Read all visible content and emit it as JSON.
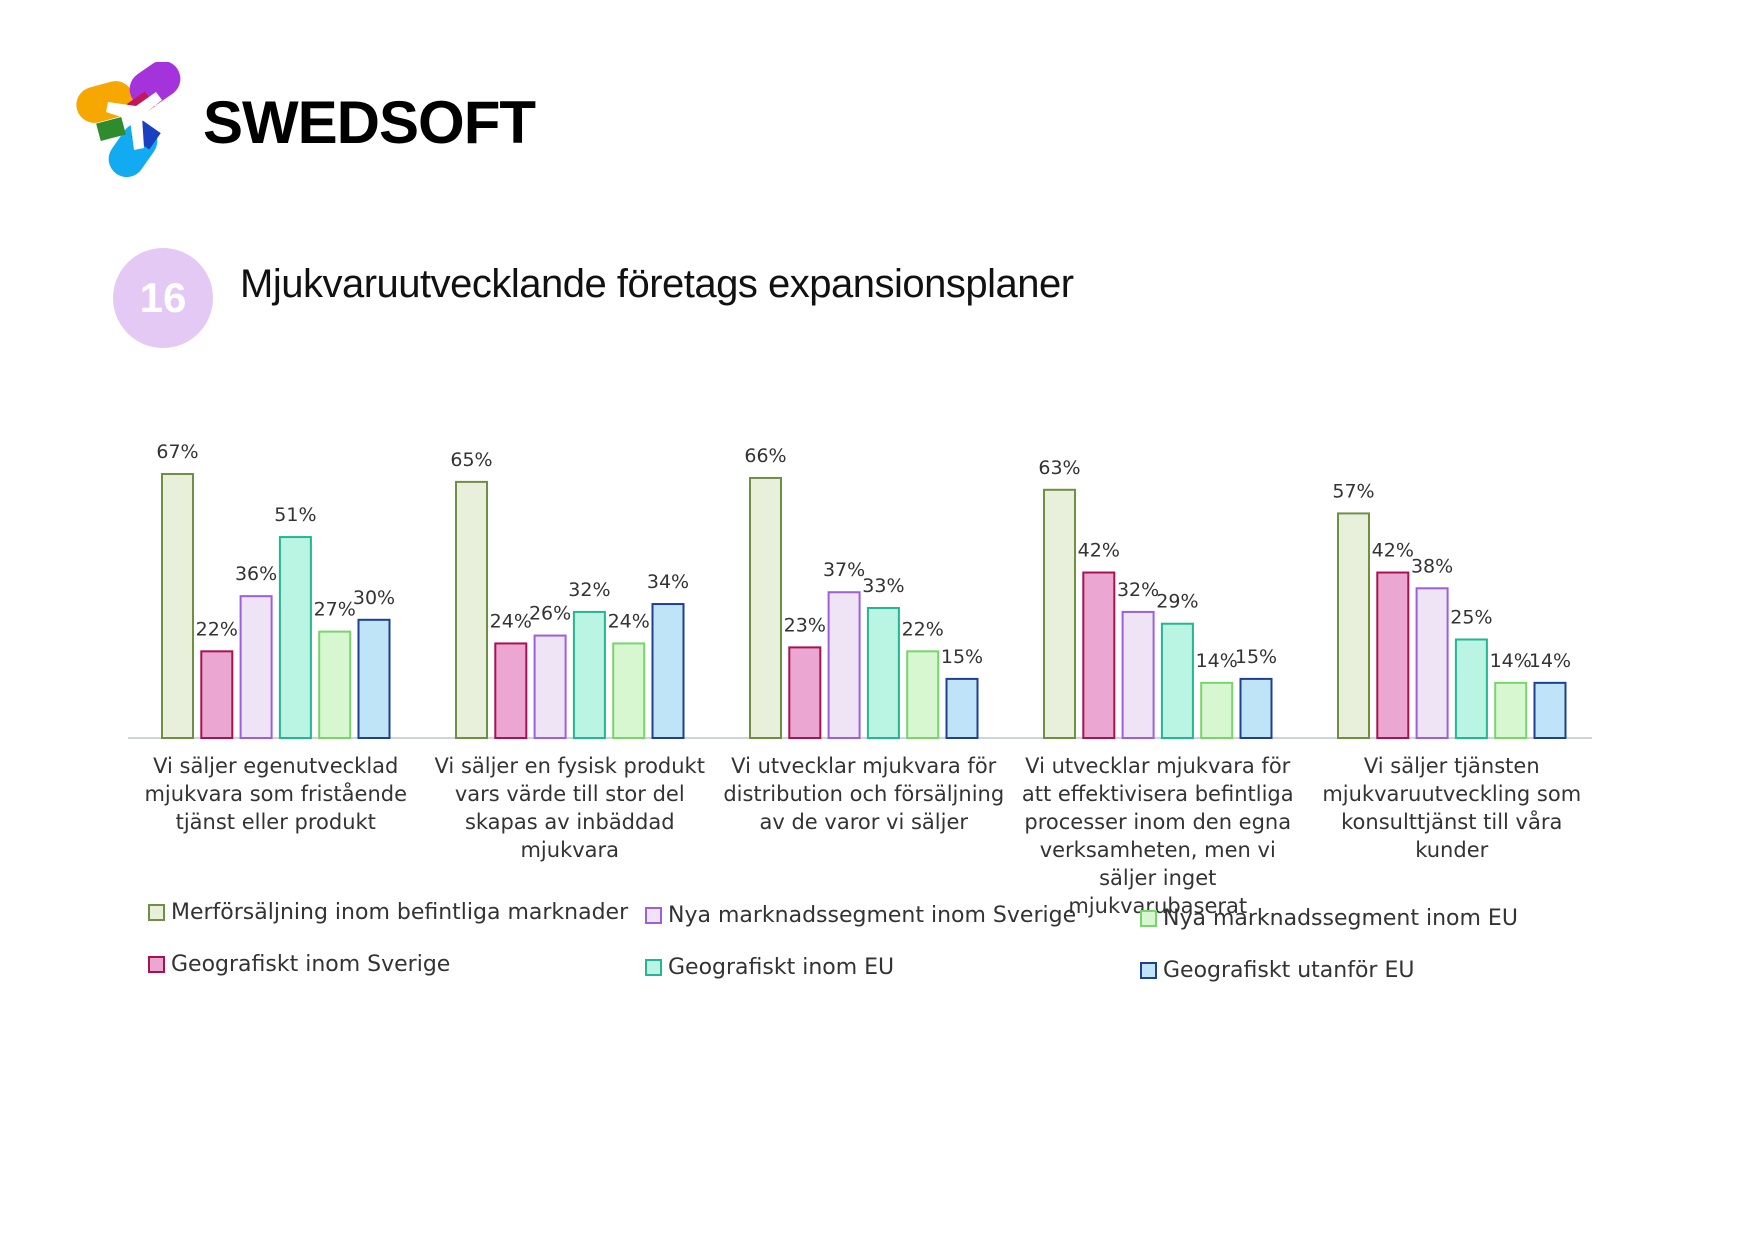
{
  "brand": {
    "name": "SWEDSOFT",
    "logo_icon": "swedsoft-logo-icon"
  },
  "page": {
    "number": "16",
    "title": "Mjukvaruutvecklande företags expansionsplaner"
  },
  "chart_data": {
    "type": "bar",
    "categories": [
      "Vi säljer egenutvecklad mjukvara som fristående tjänst eller produkt",
      "Vi säljer en fysisk produkt vars värde till stor del skapas av inbäddad mjukvara",
      "Vi utvecklar mjukvara för distribution och försäljning av de varor vi säljer",
      "Vi utvecklar mjukvara för att effektivisera befintliga processer inom den egna verksamheten, men vi säljer inget mjukvarubaserat",
      "Vi säljer tjänsten mjukvaruutveckling som konsulttjänst till våra kunder"
    ],
    "series": [
      {
        "name": "Merförsäljning inom befintliga marknader",
        "values": [
          67,
          65,
          66,
          63,
          57
        ],
        "fill": "#e8f0dc",
        "stroke": "#6f8f45"
      },
      {
        "name": "Geografiskt inom Sverige",
        "values": [
          22,
          24,
          23,
          42,
          42
        ],
        "fill": "#eba6d1",
        "stroke": "#a8134f"
      },
      {
        "name": "Nya marknadssegment inom Sverige",
        "values": [
          36,
          26,
          37,
          32,
          38
        ],
        "fill": "#efe3f6",
        "stroke": "#9b5fe0"
      },
      {
        "name": "Geografiskt inom EU",
        "values": [
          51,
          32,
          33,
          29,
          25
        ],
        "fill": "#baf5e3",
        "stroke": "#25b592"
      },
      {
        "name": "Nya marknadssegment inom EU",
        "values": [
          27,
          24,
          22,
          14,
          14
        ],
        "fill": "#d6f7d0",
        "stroke": "#7ad46c"
      },
      {
        "name": "Geografiskt utanför EU",
        "values": [
          30,
          34,
          15,
          15,
          14
        ],
        "fill": "#bfe4f7",
        "stroke": "#1f3f8f"
      }
    ],
    "value_suffix": "%",
    "ylim": [
      0,
      67
    ],
    "grid": false,
    "legend_placement": "bottom"
  }
}
